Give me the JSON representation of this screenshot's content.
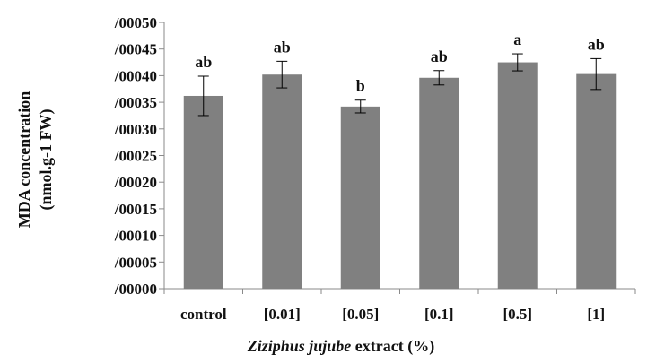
{
  "chart_data": {
    "type": "bar",
    "categories": [
      "control",
      "[0.01]",
      "[0.05]",
      "[0.1]",
      "[0.5]",
      "[1]"
    ],
    "values": [
      0.000362,
      0.000402,
      0.000342,
      0.000396,
      0.000425,
      0.000403
    ],
    "error": [
      3.7e-05,
      2.5e-05,
      1.2e-05,
      1.35e-05,
      1.6e-05,
      2.9e-05
    ],
    "significance": [
      "ab",
      "ab",
      "b",
      "ab",
      "a",
      "ab"
    ],
    "ylim": [
      0,
      0.0005
    ],
    "yticks": [
      0,
      5e-05,
      0.0001,
      0.00015,
      0.0002,
      0.00025,
      0.0003,
      0.00035,
      0.0004,
      0.00045,
      0.0005
    ],
    "ytick_labels": [
      "/00000",
      "/00005",
      "/00010",
      "/00015",
      "/00020",
      "/00025",
      "/00030",
      "/00035",
      "/00040",
      "/00045",
      "/00050"
    ],
    "ylabel_line1": "MDA concentration",
    "ylabel_line2": "(nmol.g-1 FW)",
    "xlabel_italic": "Ziziphus jujube",
    "xlabel_rest": " extract (%)",
    "grid": false,
    "bar_color": "#808080"
  }
}
